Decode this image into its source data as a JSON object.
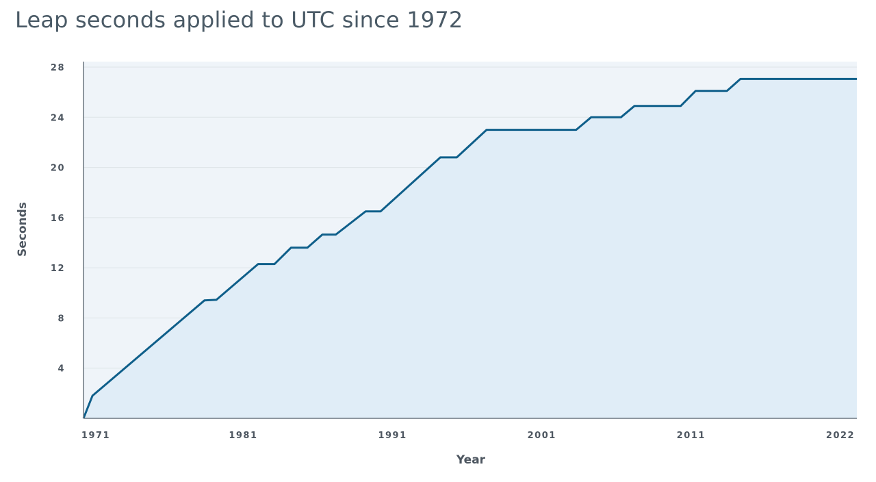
{
  "chart_data": {
    "type": "area",
    "title": "Leap seconds applied to UTC since 1972",
    "xlabel": "Year",
    "ylabel": "Seconds",
    "xlim": [
      1970.3,
      2022.1
    ],
    "ylim": [
      0,
      28
    ],
    "xticks": [
      1971,
      1981,
      1991,
      2001,
      2011,
      2022
    ],
    "yticks": [
      4,
      8,
      12,
      16,
      20,
      24,
      28
    ],
    "grid": true,
    "colors": {
      "line": "#0f5f8a",
      "fill": "#e0edf7",
      "plot_bg": "#eff4f9",
      "grid": "#dde3e8",
      "axis": "#6b7680"
    },
    "series": [
      {
        "name": "Seconds",
        "x": [
          1970.3,
          1970.9,
          1978.4,
          1979.2,
          1982.0,
          1983.1,
          1984.2,
          1985.3,
          1986.3,
          1987.2,
          1989.2,
          1990.2,
          1994.2,
          1995.3,
          1997.3,
          2003.3,
          2004.3,
          2006.3,
          2007.2,
          2010.3,
          2011.3,
          2013.4,
          2014.3,
          2022.1
        ],
        "y": [
          0,
          1.8,
          9.4,
          9.45,
          12.3,
          12.3,
          13.6,
          13.6,
          14.65,
          14.65,
          16.5,
          16.5,
          20.8,
          20.8,
          23.0,
          23.0,
          24.0,
          24.0,
          24.9,
          24.9,
          26.1,
          26.1,
          27.05,
          27.05
        ]
      }
    ]
  }
}
